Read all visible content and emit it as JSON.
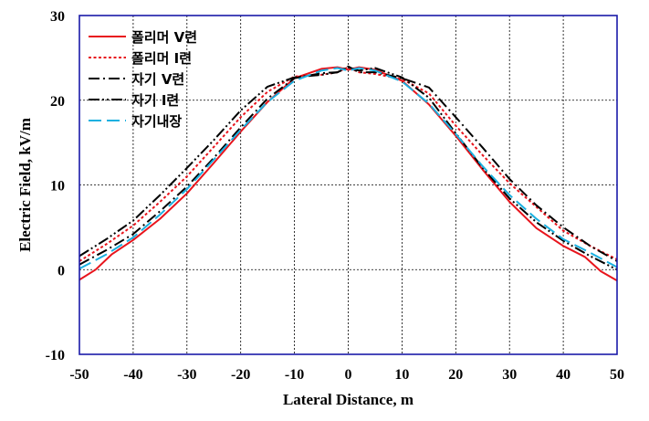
{
  "chart_data": {
    "type": "line",
    "xlabel": "Lateral Distance, m",
    "ylabel": "Electric Field, kV/m",
    "xlim": [
      -50,
      50
    ],
    "ylim": [
      -10,
      30
    ],
    "xticks": [
      -50,
      -40,
      -30,
      -20,
      -10,
      0,
      10,
      20,
      30,
      40,
      50
    ],
    "yticks": [
      -10,
      0,
      10,
      20,
      30
    ],
    "grid": true,
    "legend_position": "top-left",
    "series": [
      {
        "name": "폴리머 V련",
        "color": "#e8141c",
        "style": "solid",
        "x": [
          -50,
          -47,
          -44,
          -40,
          -35,
          -30,
          -25,
          -20,
          -15,
          -10,
          -5,
          -2,
          0,
          2,
          5,
          10,
          15,
          20,
          25,
          30,
          35,
          40,
          44,
          47,
          50
        ],
        "y": [
          -1.2,
          0,
          1.8,
          3.5,
          6.0,
          9.0,
          12.6,
          16.3,
          19.8,
          22.6,
          23.7,
          23.9,
          23.6,
          23.9,
          23.6,
          22.3,
          19.5,
          15.8,
          11.8,
          8.0,
          4.9,
          2.8,
          1.5,
          -0.2,
          -1.3
        ]
      },
      {
        "name": "폴리머 I련",
        "color": "#e8141c",
        "style": "dotted",
        "x": [
          -50,
          -45,
          -40,
          -35,
          -30,
          -25,
          -20,
          -15,
          -10,
          -5,
          -2,
          0,
          2,
          5,
          10,
          15,
          20,
          25,
          30,
          35,
          40,
          45,
          50
        ],
        "y": [
          1.0,
          3.0,
          5.2,
          8.0,
          11.0,
          14.5,
          18.0,
          21.0,
          22.8,
          23.0,
          23.3,
          23.9,
          23.3,
          23.1,
          22.5,
          20.8,
          17.0,
          13.5,
          10.2,
          7.4,
          4.6,
          2.8,
          1.2
        ]
      },
      {
        "name": "자기 V련",
        "color": "#000000",
        "style": "dashdot",
        "x": [
          -50,
          -45,
          -40,
          -35,
          -30,
          -25,
          -20,
          -15,
          -10,
          -5,
          -2,
          0,
          2,
          5,
          10,
          15,
          20,
          25,
          30,
          35,
          40,
          45,
          50
        ],
        "y": [
          0.6,
          2.3,
          4.2,
          6.9,
          9.8,
          13.2,
          16.8,
          20.2,
          22.6,
          23.2,
          23.3,
          24.0,
          23.3,
          23.3,
          22.6,
          21.5,
          18.0,
          14.4,
          10.7,
          7.6,
          5.0,
          2.8,
          1.0
        ]
      },
      {
        "name": "자기 I련",
        "color": "#000000",
        "style": "dashdotdot",
        "x": [
          -50,
          -45,
          -40,
          -35,
          -30,
          -25,
          -20,
          -15,
          -10,
          -5,
          -2,
          0,
          2,
          5,
          10,
          15,
          20,
          25,
          30,
          35,
          40,
          45,
          50
        ],
        "y": [
          1.6,
          3.6,
          5.8,
          8.8,
          12.0,
          15.3,
          18.8,
          21.6,
          22.7,
          23.0,
          23.3,
          23.9,
          23.5,
          23.8,
          22.7,
          20.3,
          16.1,
          12.0,
          8.4,
          5.6,
          3.4,
          1.6,
          0.0
        ]
      },
      {
        "name": "자기내장",
        "color": "#1ab0e0",
        "style": "dashed",
        "x": [
          -50,
          -45,
          -40,
          -35,
          -30,
          -25,
          -20,
          -15,
          -10,
          -5,
          -2,
          0,
          2,
          5,
          10,
          15,
          20,
          25,
          30,
          35,
          40,
          45,
          50
        ],
        "y": [
          0.1,
          1.8,
          3.8,
          6.5,
          9.5,
          13.0,
          16.5,
          19.8,
          22.3,
          23.5,
          23.8,
          23.5,
          23.8,
          23.5,
          22.2,
          19.6,
          16.0,
          12.2,
          8.8,
          6.0,
          3.6,
          2.0,
          0.3
        ]
      }
    ]
  }
}
